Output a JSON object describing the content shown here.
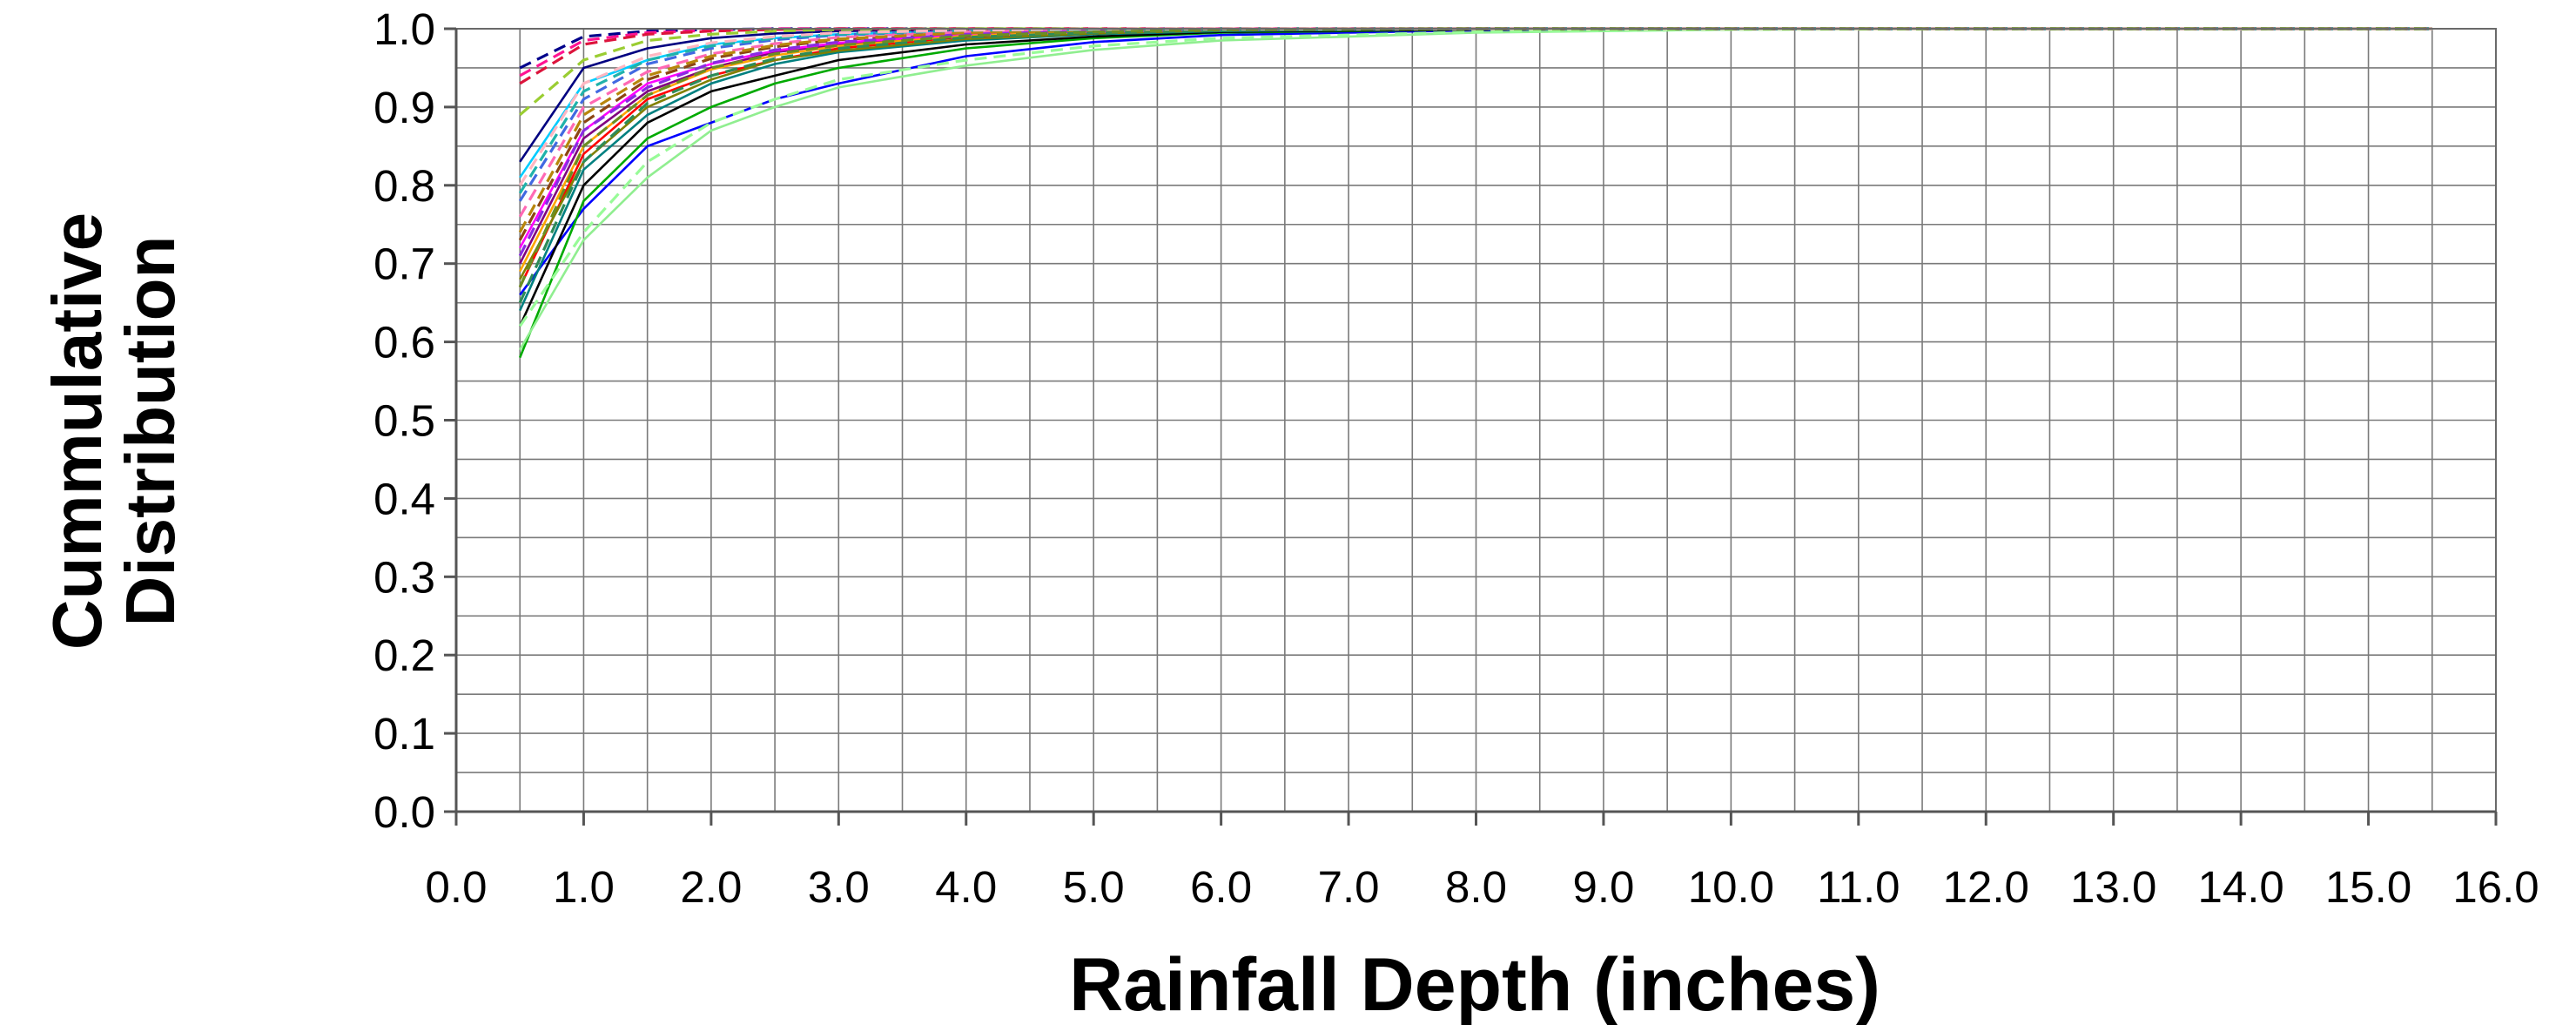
{
  "chart_data": {
    "type": "line",
    "title": "",
    "xlabel": "Rainfall Depth (inches)",
    "ylabel_lines": [
      "Cummulative",
      "Distribution"
    ],
    "xlim": [
      0,
      16
    ],
    "ylim": [
      0,
      1
    ],
    "x_major_step": 1,
    "x_minor_step": 0.5,
    "y_major_step": 0.1,
    "y_minor_step": 0.05,
    "x_tick_labels": [
      "0.0",
      "1.0",
      "2.0",
      "3.0",
      "4.0",
      "5.0",
      "6.0",
      "7.0",
      "8.0",
      "9.0",
      "10.0",
      "11.0",
      "12.0",
      "13.0",
      "14.0",
      "15.0",
      "16.0"
    ],
    "y_tick_labels": [
      "0.0",
      "0.1",
      "0.2",
      "0.3",
      "0.4",
      "0.5",
      "0.6",
      "0.7",
      "0.8",
      "0.9",
      "1.0"
    ],
    "grid": true,
    "legend": "none",
    "x": [
      0.5,
      1.0,
      1.5,
      2.0,
      2.5,
      3.0,
      4.0,
      5.0,
      6.0,
      8.0,
      10.0,
      12.0,
      15.5
    ],
    "series": [
      {
        "color": "#0000ff",
        "dash": "solid",
        "values": [
          0.66,
          0.77,
          0.85,
          0.88,
          0.91,
          0.93,
          0.965,
          0.983,
          0.992,
          0.998,
          1.0,
          1.0,
          1.0
        ]
      },
      {
        "color": "#00aa00",
        "dash": "solid",
        "values": [
          0.58,
          0.78,
          0.86,
          0.9,
          0.93,
          0.95,
          0.975,
          0.988,
          0.995,
          0.999,
          1.0,
          1.0,
          1.0
        ]
      },
      {
        "color": "#000000",
        "dash": "solid",
        "values": [
          0.62,
          0.8,
          0.88,
          0.92,
          0.94,
          0.96,
          0.98,
          0.99,
          0.996,
          0.999,
          1.0,
          1.0,
          1.0
        ]
      },
      {
        "color": "#00ccff",
        "dash": "solid",
        "values": [
          0.81,
          0.93,
          0.96,
          0.98,
          0.988,
          0.993,
          0.997,
          0.999,
          1.0,
          1.0,
          1.0,
          1.0,
          1.0
        ]
      },
      {
        "color": "#ff0000",
        "dash": "solid",
        "values": [
          0.67,
          0.84,
          0.91,
          0.94,
          0.96,
          0.975,
          0.99,
          0.996,
          0.998,
          1.0,
          1.0,
          1.0,
          1.0
        ]
      },
      {
        "color": "#800080",
        "dash": "solid",
        "values": [
          0.7,
          0.86,
          0.92,
          0.95,
          0.97,
          0.98,
          0.99,
          0.996,
          0.999,
          1.0,
          1.0,
          1.0,
          1.0
        ]
      },
      {
        "color": "#008080",
        "dash": "solid",
        "values": [
          0.64,
          0.82,
          0.89,
          0.93,
          0.955,
          0.97,
          0.985,
          0.993,
          0.997,
          1.0,
          1.0,
          1.0,
          1.0
        ]
      },
      {
        "color": "#808000",
        "dash": "solid",
        "values": [
          0.68,
          0.83,
          0.9,
          0.935,
          0.96,
          0.972,
          0.987,
          0.994,
          0.998,
          1.0,
          1.0,
          1.0,
          1.0
        ]
      },
      {
        "color": "#000080",
        "dash": "solid",
        "values": [
          0.83,
          0.95,
          0.975,
          0.988,
          0.994,
          0.997,
          0.999,
          1.0,
          1.0,
          1.0,
          1.0,
          1.0,
          1.0
        ]
      },
      {
        "color": "#ff00ff",
        "dash": "solid",
        "values": [
          0.72,
          0.87,
          0.93,
          0.955,
          0.972,
          0.982,
          0.993,
          0.997,
          0.999,
          1.0,
          1.0,
          1.0,
          1.0
        ]
      },
      {
        "color": "#90ee90",
        "dash": "solid",
        "values": [
          0.59,
          0.73,
          0.81,
          0.87,
          0.9,
          0.925,
          0.953,
          0.973,
          0.985,
          0.995,
          0.999,
          1.0,
          1.0
        ]
      },
      {
        "color": "#ffa500",
        "dash": "solid",
        "values": [
          0.69,
          0.85,
          0.915,
          0.948,
          0.966,
          0.978,
          0.991,
          0.996,
          0.999,
          1.0,
          1.0,
          1.0,
          1.0
        ]
      },
      {
        "color": "#00008b",
        "dash": "dashed",
        "values": [
          0.95,
          0.99,
          0.997,
          0.999,
          1.0,
          1.0,
          1.0,
          1.0,
          1.0,
          1.0,
          1.0,
          1.0,
          1.0
        ]
      },
      {
        "color": "#ff1493",
        "dash": "dashed",
        "values": [
          0.94,
          0.985,
          0.995,
          0.998,
          1.0,
          1.0,
          1.0,
          1.0,
          1.0,
          1.0,
          1.0,
          1.0,
          1.0
        ]
      },
      {
        "color": "#dc143c",
        "dash": "dashed",
        "values": [
          0.93,
          0.98,
          0.993,
          0.997,
          0.999,
          1.0,
          1.0,
          1.0,
          1.0,
          1.0,
          1.0,
          1.0,
          1.0
        ]
      },
      {
        "color": "#9acd32",
        "dash": "dashed",
        "values": [
          0.89,
          0.96,
          0.985,
          0.993,
          0.997,
          0.999,
          1.0,
          1.0,
          1.0,
          1.0,
          1.0,
          1.0,
          1.0
        ]
      },
      {
        "color": "#4169e1",
        "dash": "dashed",
        "values": [
          0.78,
          0.91,
          0.955,
          0.975,
          0.986,
          0.992,
          0.997,
          0.999,
          1.0,
          1.0,
          1.0,
          1.0,
          1.0
        ]
      },
      {
        "color": "#8b4513",
        "dash": "dashed",
        "values": [
          0.73,
          0.88,
          0.935,
          0.962,
          0.977,
          0.986,
          0.995,
          0.998,
          1.0,
          1.0,
          1.0,
          1.0,
          1.0
        ]
      },
      {
        "color": "#ff69b4",
        "dash": "dashed",
        "values": [
          0.76,
          0.9,
          0.945,
          0.968,
          0.981,
          0.989,
          0.996,
          0.999,
          1.0,
          1.0,
          1.0,
          1.0,
          1.0
        ]
      },
      {
        "color": "#2e8b57",
        "dash": "dashed",
        "values": [
          0.65,
          0.83,
          0.905,
          0.94,
          0.962,
          0.975,
          0.989,
          0.995,
          0.998,
          1.0,
          1.0,
          1.0,
          1.0
        ]
      },
      {
        "color": "#8a2be2",
        "dash": "dashed",
        "values": [
          0.71,
          0.87,
          0.925,
          0.956,
          0.973,
          0.983,
          0.993,
          0.997,
          0.999,
          1.0,
          1.0,
          1.0,
          1.0
        ]
      },
      {
        "color": "#b8860b",
        "dash": "dashed",
        "values": [
          0.74,
          0.89,
          0.94,
          0.965,
          0.979,
          0.987,
          0.995,
          0.998,
          1.0,
          1.0,
          1.0,
          1.0,
          1.0
        ]
      },
      {
        "color": "#20b2aa",
        "dash": "dashed",
        "values": [
          0.79,
          0.92,
          0.96,
          0.978,
          0.988,
          0.993,
          0.998,
          0.999,
          1.0,
          1.0,
          1.0,
          1.0,
          1.0
        ]
      },
      {
        "color": "#98fb98",
        "dash": "dashed",
        "values": [
          0.62,
          0.74,
          0.83,
          0.88,
          0.91,
          0.935,
          0.96,
          0.978,
          0.988,
          0.996,
          0.999,
          1.0,
          1.0
        ]
      },
      {
        "color": "#ffb6c1",
        "dash": "dashed",
        "values": [
          0.8,
          0.93,
          0.965,
          0.982,
          0.99,
          0.995,
          0.998,
          1.0,
          1.0,
          1.0,
          1.0,
          1.0,
          1.0
        ]
      },
      {
        "color": "#6b8e23",
        "dash": "dashed",
        "values": [
          0.67,
          0.85,
          0.915,
          0.95,
          0.968,
          0.979,
          0.991,
          0.996,
          0.999,
          1.0,
          1.0,
          1.0,
          1.0
        ]
      }
    ]
  }
}
